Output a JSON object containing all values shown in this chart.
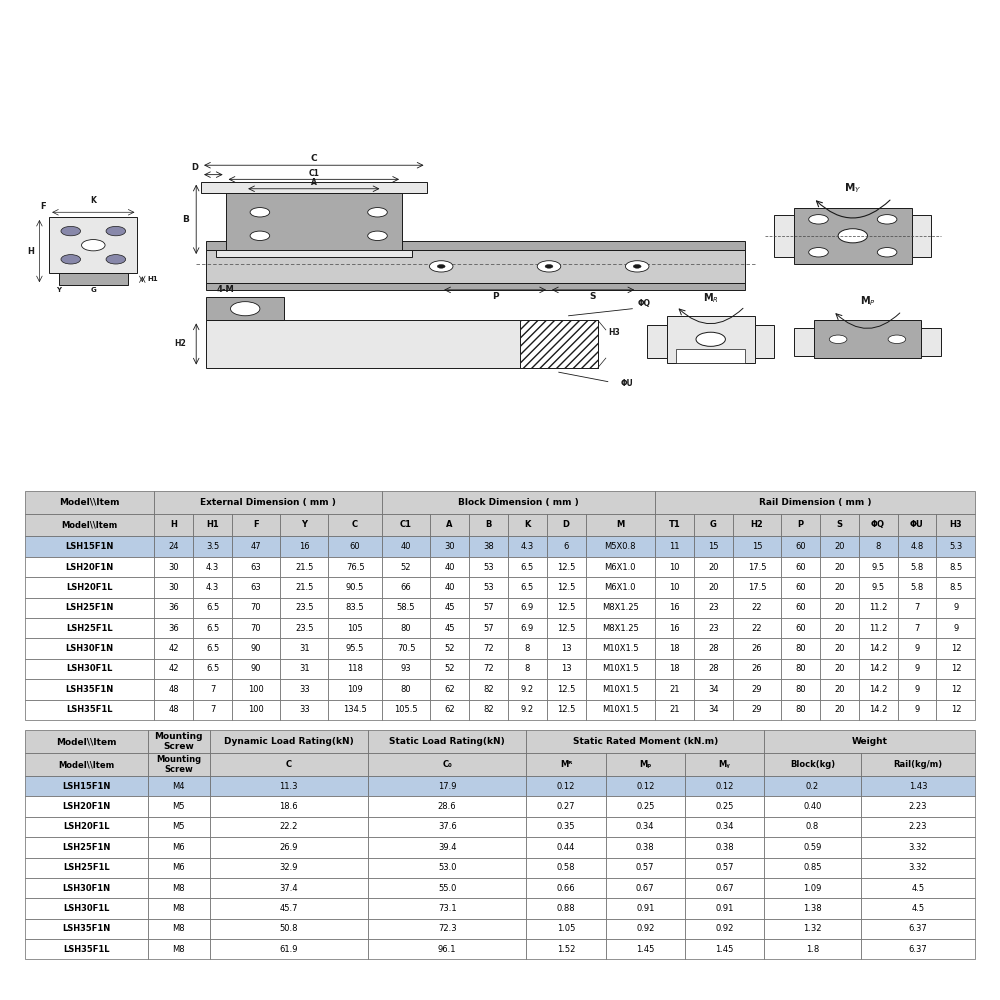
{
  "bg_color": "#ffffff",
  "drawing_bg": "#ffffff",
  "table_bg": "#f0f0f0",
  "header_fill": "#d0d0d0",
  "highlight_color": "#b8cce4",
  "row_alt_color": "#e8eef8",
  "row_white": "#ffffff",
  "border_color": "#666666",
  "dark": "#000000",
  "table1_groups": [
    [
      0,
      1,
      "Model\\\\Item"
    ],
    [
      1,
      6,
      "External Dimension ( mm )"
    ],
    [
      6,
      12,
      "Block Dimension ( mm )"
    ],
    [
      12,
      20,
      "Rail Dimension ( mm )"
    ]
  ],
  "table1_cols": [
    "Model\\\\Item",
    "H",
    "H1",
    "F",
    "Y",
    "C",
    "C1",
    "A",
    "B",
    "K",
    "D",
    "M",
    "T1",
    "G",
    "H2",
    "P",
    "S",
    "ΦQ",
    "ΦU",
    "H3"
  ],
  "table1_col_widths": [
    1.4,
    0.42,
    0.42,
    0.52,
    0.52,
    0.58,
    0.52,
    0.42,
    0.42,
    0.42,
    0.42,
    0.75,
    0.42,
    0.42,
    0.52,
    0.42,
    0.42,
    0.42,
    0.42,
    0.42
  ],
  "table1_data": [
    [
      "LSH15F1N",
      "24",
      "3.5",
      "47",
      "16",
      "60",
      "40",
      "30",
      "38",
      "4.3",
      "6",
      "M5X0.8",
      "11",
      "15",
      "15",
      "60",
      "20",
      "8",
      "4.8",
      "5.3"
    ],
    [
      "LSH20F1N",
      "30",
      "4.3",
      "63",
      "21.5",
      "76.5",
      "52",
      "40",
      "53",
      "6.5",
      "12.5",
      "M6X1.0",
      "10",
      "20",
      "17.5",
      "60",
      "20",
      "9.5",
      "5.8",
      "8.5"
    ],
    [
      "LSH20F1L",
      "30",
      "4.3",
      "63",
      "21.5",
      "90.5",
      "66",
      "40",
      "53",
      "6.5",
      "12.5",
      "M6X1.0",
      "10",
      "20",
      "17.5",
      "60",
      "20",
      "9.5",
      "5.8",
      "8.5"
    ],
    [
      "LSH25F1N",
      "36",
      "6.5",
      "70",
      "23.5",
      "83.5",
      "58.5",
      "45",
      "57",
      "6.9",
      "12.5",
      "M8X1.25",
      "16",
      "23",
      "22",
      "60",
      "20",
      "11.2",
      "7",
      "9"
    ],
    [
      "LSH25F1L",
      "36",
      "6.5",
      "70",
      "23.5",
      "105",
      "80",
      "45",
      "57",
      "6.9",
      "12.5",
      "M8X1.25",
      "16",
      "23",
      "22",
      "60",
      "20",
      "11.2",
      "7",
      "9"
    ],
    [
      "LSH30F1N",
      "42",
      "6.5",
      "90",
      "31",
      "95.5",
      "70.5",
      "52",
      "72",
      "8",
      "13",
      "M10X1.5",
      "18",
      "28",
      "26",
      "80",
      "20",
      "14.2",
      "9",
      "12"
    ],
    [
      "LSH30F1L",
      "42",
      "6.5",
      "90",
      "31",
      "118",
      "93",
      "52",
      "72",
      "8",
      "13",
      "M10X1.5",
      "18",
      "28",
      "26",
      "80",
      "20",
      "14.2",
      "9",
      "12"
    ],
    [
      "LSH35F1N",
      "48",
      "7",
      "100",
      "33",
      "109",
      "80",
      "62",
      "82",
      "9.2",
      "12.5",
      "M10X1.5",
      "21",
      "34",
      "29",
      "80",
      "20",
      "14.2",
      "9",
      "12"
    ],
    [
      "LSH35F1L",
      "48",
      "7",
      "100",
      "33",
      "134.5",
      "105.5",
      "62",
      "82",
      "9.2",
      "12.5",
      "M10X1.5",
      "21",
      "34",
      "29",
      "80",
      "20",
      "14.2",
      "9",
      "12"
    ]
  ],
  "table1_highlight_row": 0,
  "table2_groups": [
    [
      0,
      1,
      "Model\\\\Item"
    ],
    [
      1,
      2,
      "Mounting\nScrew"
    ],
    [
      2,
      3,
      "Dynamic Load Rating(kN)"
    ],
    [
      3,
      4,
      "Static Load Rating(kN)"
    ],
    [
      4,
      7,
      "Static Rated Moment (kN.m)"
    ],
    [
      7,
      9,
      "Weight"
    ]
  ],
  "table2_cols": [
    "Model\\\\Item",
    "Mounting\nScrew",
    "C",
    "C₀",
    "Mᴿ",
    "Mₚ",
    "Mᵧ",
    "Block(kg)",
    "Rail(kg/m)"
  ],
  "table2_col_widths": [
    1.4,
    0.7,
    1.8,
    1.8,
    0.9,
    0.9,
    0.9,
    1.1,
    1.3
  ],
  "table2_data": [
    [
      "LSH15F1N",
      "M4",
      "11.3",
      "17.9",
      "0.12",
      "0.12",
      "0.12",
      "0.2",
      "1.43"
    ],
    [
      "LSH20F1N",
      "M5",
      "18.6",
      "28.6",
      "0.27",
      "0.25",
      "0.25",
      "0.40",
      "2.23"
    ],
    [
      "LSH20F1L",
      "M5",
      "22.2",
      "37.6",
      "0.35",
      "0.34",
      "0.34",
      "0.8",
      "2.23"
    ],
    [
      "LSH25F1N",
      "M6",
      "26.9",
      "39.4",
      "0.44",
      "0.38",
      "0.38",
      "0.59",
      "3.32"
    ],
    [
      "LSH25F1L",
      "M6",
      "32.9",
      "53.0",
      "0.58",
      "0.57",
      "0.57",
      "0.85",
      "3.32"
    ],
    [
      "LSH30F1N",
      "M8",
      "37.4",
      "55.0",
      "0.66",
      "0.67",
      "0.67",
      "1.09",
      "4.5"
    ],
    [
      "LSH30F1L",
      "M8",
      "45.7",
      "73.1",
      "0.88",
      "0.91",
      "0.91",
      "1.38",
      "4.5"
    ],
    [
      "LSH35F1N",
      "M8",
      "50.8",
      "72.3",
      "1.05",
      "0.92",
      "0.92",
      "1.32",
      "6.37"
    ],
    [
      "LSH35F1L",
      "M8",
      "61.9",
      "96.1",
      "1.52",
      "1.45",
      "1.45",
      "1.8",
      "6.37"
    ]
  ],
  "table2_highlight_row": 0
}
